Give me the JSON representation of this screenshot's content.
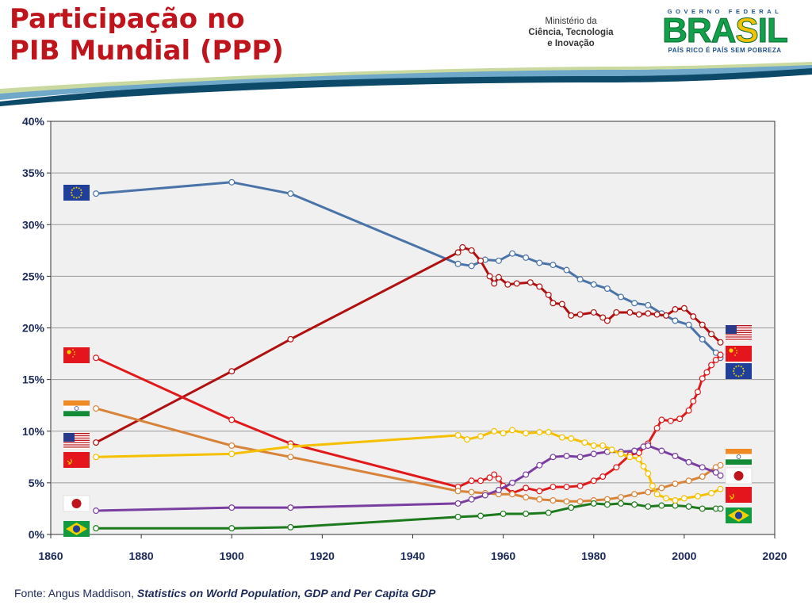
{
  "header": {
    "title_line1": "Participação no",
    "title_line2": "PIB Mundial (PPP)",
    "ministry_line1": "Ministério da",
    "ministry_line2": "Ciência, Tecnologia",
    "ministry_line3": "e Inovação",
    "gov_top": "GOVERNO FEDERAL",
    "gov_word_a": "BRA",
    "gov_word_b": "S",
    "gov_word_c": "IL",
    "gov_slogan": "PAÍS RICO É PAÍS SEM POBREZA"
  },
  "source": {
    "prefix": "Fonte: Angus Maddison, ",
    "title": "Statistics on World Population, GDP and Per  Capita GDP"
  },
  "colors": {
    "europe": "#4a74a8",
    "usa": "#b01010",
    "china": "#e0191b",
    "india": "#d8833a",
    "japan": "#7a3ea0",
    "brazil": "#1c7a1c",
    "russia": "#f5c000"
  },
  "chart_data": {
    "type": "line",
    "title": "",
    "xlabel": "",
    "ylabel": "",
    "xlim": [
      1860,
      2020
    ],
    "ylim": [
      0,
      40
    ],
    "x_ticks": [
      "1860",
      "1880",
      "1900",
      "1920",
      "1940",
      "1960",
      "1980",
      "2000",
      "2020"
    ],
    "y_ticks": [
      "0%",
      "5%",
      "10%",
      "15%",
      "20%",
      "25%",
      "30%",
      "35%",
      "40%"
    ],
    "grid": true,
    "flags_left": [
      "eu-flag",
      "china-flag",
      "india-flag",
      "usa-flag",
      "ussr-flag",
      "japan-flag",
      "brazil-flag"
    ],
    "flags_right": [
      "usa-flag",
      "china-flag",
      "eu-flag",
      "india-flag",
      "japan-flag",
      "ussr-flag",
      "brazil-flag"
    ],
    "series": [
      {
        "key": "europe",
        "x": [
          1870,
          1900,
          1913,
          1950,
          1953,
          1956,
          1959,
          1962,
          1965,
          1968,
          1971,
          1974,
          1977,
          1980,
          1983,
          1986,
          1989,
          1992,
          1995,
          1998,
          2001,
          2004,
          2007,
          2008
        ],
        "y": [
          33.0,
          34.1,
          33.0,
          26.2,
          26.0,
          26.6,
          26.5,
          27.2,
          26.8,
          26.3,
          26.1,
          25.6,
          24.7,
          24.2,
          23.8,
          23.0,
          22.4,
          22.2,
          21.4,
          20.7,
          20.3,
          18.9,
          17.6,
          17.1
        ]
      },
      {
        "key": "usa",
        "x": [
          1870,
          1900,
          1913,
          1950,
          1951,
          1953,
          1955,
          1957,
          1958,
          1959,
          1961,
          1963,
          1966,
          1968,
          1970,
          1971,
          1973,
          1975,
          1977,
          1980,
          1982,
          1983,
          1985,
          1988,
          1990,
          1992,
          1994,
          1996,
          1998,
          2000,
          2002,
          2004,
          2006,
          2008
        ],
        "y": [
          8.9,
          15.8,
          18.9,
          27.3,
          27.8,
          27.5,
          26.5,
          25.0,
          24.3,
          24.9,
          24.2,
          24.3,
          24.4,
          24.0,
          23.2,
          22.4,
          22.3,
          21.2,
          21.3,
          21.5,
          21.0,
          20.7,
          21.5,
          21.5,
          21.3,
          21.4,
          21.3,
          21.2,
          21.8,
          21.9,
          21.1,
          20.3,
          19.4,
          18.6
        ]
      },
      {
        "key": "china",
        "x": [
          1870,
          1900,
          1913,
          1950,
          1953,
          1955,
          1957,
          1958,
          1959,
          1960,
          1962,
          1965,
          1968,
          1971,
          1974,
          1977,
          1980,
          1982,
          1985,
          1988,
          1990,
          1992,
          1994,
          1995,
          1997,
          1999,
          2001,
          2002,
          2003,
          2004,
          2005,
          2006,
          2007,
          2008
        ],
        "y": [
          17.1,
          11.1,
          8.8,
          4.6,
          5.2,
          5.2,
          5.5,
          5.8,
          5.4,
          4.7,
          4.0,
          4.5,
          4.2,
          4.6,
          4.6,
          4.7,
          5.2,
          5.6,
          6.5,
          7.7,
          7.9,
          8.8,
          10.3,
          11.1,
          11.0,
          11.2,
          12.0,
          12.9,
          13.8,
          15.1,
          15.7,
          16.4,
          16.9,
          17.4
        ]
      },
      {
        "key": "india",
        "x": [
          1870,
          1900,
          1913,
          1950,
          1953,
          1956,
          1959,
          1962,
          1965,
          1968,
          1971,
          1974,
          1977,
          1980,
          1983,
          1986,
          1989,
          1992,
          1995,
          1998,
          2001,
          2004,
          2007,
          2008
        ],
        "y": [
          12.2,
          8.6,
          7.5,
          4.2,
          4.1,
          4.0,
          3.9,
          3.9,
          3.6,
          3.4,
          3.3,
          3.2,
          3.2,
          3.3,
          3.4,
          3.6,
          3.9,
          4.1,
          4.5,
          4.9,
          5.2,
          5.6,
          6.5,
          6.7
        ]
      },
      {
        "key": "japan",
        "x": [
          1870,
          1900,
          1913,
          1950,
          1953,
          1956,
          1959,
          1962,
          1965,
          1968,
          1971,
          1974,
          1977,
          1980,
          1983,
          1986,
          1989,
          1991,
          1992,
          1995,
          1998,
          2001,
          2004,
          2007,
          2008
        ],
        "y": [
          2.3,
          2.6,
          2.6,
          3.0,
          3.4,
          3.8,
          4.3,
          5.0,
          5.8,
          6.7,
          7.5,
          7.6,
          7.5,
          7.8,
          8.0,
          8.0,
          8.1,
          8.5,
          8.6,
          8.1,
          7.6,
          7.0,
          6.5,
          6.0,
          5.7
        ]
      },
      {
        "key": "brazil",
        "x": [
          1870,
          1900,
          1913,
          1950,
          1955,
          1960,
          1965,
          1970,
          1975,
          1980,
          1983,
          1986,
          1989,
          1992,
          1995,
          1998,
          2001,
          2004,
          2007,
          2008
        ],
        "y": [
          0.6,
          0.6,
          0.7,
          1.7,
          1.8,
          2.0,
          2.0,
          2.1,
          2.6,
          3.0,
          2.9,
          3.0,
          2.9,
          2.7,
          2.8,
          2.8,
          2.7,
          2.5,
          2.5,
          2.5
        ]
      },
      {
        "key": "russia",
        "x": [
          1870,
          1900,
          1913,
          1950,
          1952,
          1955,
          1958,
          1960,
          1962,
          1965,
          1968,
          1970,
          1973,
          1975,
          1978,
          1980,
          1982,
          1984,
          1986,
          1988,
          1990,
          1991,
          1992,
          1993,
          1994,
          1996,
          1998,
          2000,
          2003,
          2006,
          2008
        ],
        "y": [
          7.5,
          7.8,
          8.5,
          9.6,
          9.2,
          9.5,
          10.0,
          9.8,
          10.1,
          9.8,
          9.9,
          9.9,
          9.4,
          9.3,
          8.9,
          8.6,
          8.6,
          8.2,
          7.8,
          7.5,
          7.3,
          6.6,
          5.9,
          4.7,
          3.9,
          3.5,
          3.3,
          3.5,
          3.7,
          4.0,
          4.4
        ]
      }
    ]
  }
}
